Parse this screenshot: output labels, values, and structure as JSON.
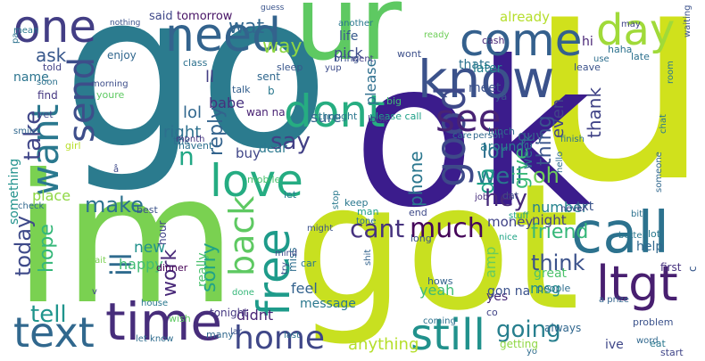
{
  "words": [
    {
      "text": "u",
      "color": "#d0e11c"
    },
    {
      "text": "go",
      "color": "#2b7b8e"
    },
    {
      "text": "ok",
      "color": "#3b1c8c"
    },
    {
      "text": "got",
      "color": "#c8e020"
    },
    {
      "text": "im",
      "color": "#7ad151"
    },
    {
      "text": "ur",
      "color": "#5ec962"
    },
    {
      "text": "call",
      "color": "#2c728e"
    },
    {
      "text": "know",
      "color": "#3b528b"
    },
    {
      "text": "come",
      "color": "#34608d"
    },
    {
      "text": "need",
      "color": "#33638d"
    },
    {
      "text": "one",
      "color": "#433e85"
    },
    {
      "text": "day",
      "color": "#a0da39"
    },
    {
      "text": "time",
      "color": "#472d7b"
    },
    {
      "text": "text",
      "color": "#31688e"
    },
    {
      "text": "ltgt",
      "color": "#481f70"
    },
    {
      "text": "dont",
      "color": "#26ad81"
    },
    {
      "text": "love",
      "color": "#25ac82"
    },
    {
      "text": "free",
      "color": "#1e9b8a"
    },
    {
      "text": "still",
      "color": "#21918c"
    },
    {
      "text": "good",
      "color": "#3e4989"
    },
    {
      "text": "see",
      "color": "#482374"
    },
    {
      "text": "want",
      "color": "#2a788e"
    },
    {
      "text": "send",
      "color": "#3d4e8a"
    },
    {
      "text": "home",
      "color": "#3f4788"
    },
    {
      "text": "back",
      "color": "#5ec962"
    },
    {
      "text": "ill",
      "color": "#2f6b8e"
    },
    {
      "text": "much",
      "color": "#450559"
    },
    {
      "text": "cant",
      "color": "#46327e"
    },
    {
      "text": "going",
      "color": "#277f8e"
    },
    {
      "text": "say",
      "color": "#424086"
    },
    {
      "text": "well",
      "color": "#2a768e"
    },
    {
      "text": "take",
      "color": "#404588"
    },
    {
      "text": "tell",
      "color": "#1f948c"
    },
    {
      "text": "today",
      "color": "#3e4a89"
    },
    {
      "text": "hope",
      "color": "#35b779"
    },
    {
      "text": "make",
      "color": "#2c718e"
    },
    {
      "text": "work",
      "color": "#482878"
    },
    {
      "text": "sorry",
      "color": "#20a386"
    },
    {
      "text": "think",
      "color": "#3b528b"
    },
    {
      "text": "friend",
      "color": "#35b779"
    },
    {
      "text": "reply",
      "color": "#33638d"
    },
    {
      "text": "way",
      "color": "#8fd744"
    },
    {
      "text": "wat",
      "color": "#31678e"
    },
    {
      "text": "ask",
      "color": "#38588c"
    },
    {
      "text": "da",
      "color": "#1fa187"
    },
    {
      "text": "hey",
      "color": "#472a7a"
    },
    {
      "text": "oh",
      "color": "#6ece58"
    },
    {
      "text": "lor",
      "color": "#2e6f8e"
    },
    {
      "text": "give",
      "color": "#3aba76"
    },
    {
      "text": "thing",
      "color": "#3a548c"
    },
    {
      "text": "thank",
      "color": "#404387"
    },
    {
      "text": "phone",
      "color": "#2a778e"
    },
    {
      "text": "lol",
      "color": "#31678e"
    },
    {
      "text": "right",
      "color": "#2d708e"
    },
    {
      "text": "babe",
      "color": "#46307e"
    },
    {
      "text": "ll",
      "color": "#433d84"
    },
    {
      "text": "n",
      "color": "#22a785"
    },
    {
      "text": "pick",
      "color": "#3e4c8a"
    },
    {
      "text": "life",
      "color": "#375a8c"
    },
    {
      "text": "said",
      "color": "#3f4889"
    },
    {
      "text": "tomorrow",
      "color": "#471365"
    },
    {
      "text": "already",
      "color": "#b5de2b"
    },
    {
      "text": "thats",
      "color": "#2c728e"
    },
    {
      "text": "hi",
      "color": "#482576"
    },
    {
      "text": "later",
      "color": "#26828e"
    },
    {
      "text": "meet",
      "color": "#3b528b"
    },
    {
      "text": "please",
      "color": "#2e6f8e"
    },
    {
      "text": "sure",
      "color": "#33638d"
    },
    {
      "text": "buy",
      "color": "#404688"
    },
    {
      "text": "dear",
      "color": "#2a788e"
    },
    {
      "text": "guy",
      "color": "#38598c"
    },
    {
      "text": "even",
      "color": "#414487"
    },
    {
      "text": "night",
      "color": "#414287"
    },
    {
      "text": "number",
      "color": "#25838e"
    },
    {
      "text": "money",
      "color": "#404387"
    },
    {
      "text": "new",
      "color": "#21918c"
    },
    {
      "text": "happy",
      "color": "#3fbc73"
    },
    {
      "text": "feel",
      "color": "#33628d"
    },
    {
      "text": "yeah",
      "color": "#3dbc74"
    },
    {
      "text": "msg",
      "color": "#21908d"
    },
    {
      "text": "yes",
      "color": "#482979"
    },
    {
      "text": "great",
      "color": "#4cc26c"
    },
    {
      "text": "didnt",
      "color": "#482475"
    },
    {
      "text": "message",
      "color": "#2a788e"
    },
    {
      "text": "ive",
      "color": "#3f4788"
    },
    {
      "text": "anything",
      "color": "#b5de2b"
    },
    {
      "text": "week",
      "color": "#2e6e8e"
    },
    {
      "text": "around",
      "color": "#297b8e"
    },
    {
      "text": "amp",
      "color": "#67cc5c"
    },
    {
      "text": "gon na",
      "color": "#3b528b"
    },
    {
      "text": "really",
      "color": "#4ac16d"
    },
    {
      "text": "place",
      "color": "#8fd744"
    },
    {
      "text": "something",
      "color": "#21918c"
    },
    {
      "text": "miss",
      "color": "#2e6e8e"
    },
    {
      "text": "find",
      "color": "#453781"
    },
    {
      "text": "txt",
      "color": "#3a548c"
    },
    {
      "text": "c",
      "color": "#38588c"
    },
    {
      "text": "help",
      "color": "#31688e"
    },
    {
      "text": "lot",
      "color": "#2a788e"
    },
    {
      "text": "first",
      "color": "#46327e"
    },
    {
      "text": "thk",
      "color": "#2f6c8e"
    },
    {
      "text": "talk",
      "color": "#35608d"
    },
    {
      "text": "sent",
      "color": "#31688e"
    },
    {
      "text": "tonight",
      "color": "#453882"
    },
    {
      "text": "wont",
      "color": "#3c4f8a"
    },
    {
      "text": "cash",
      "color": "#482878"
    },
    {
      "text": "leave",
      "color": "#3b528b"
    },
    {
      "text": "late",
      "color": "#2d718e"
    },
    {
      "text": "sleep",
      "color": "#39568c"
    },
    {
      "text": "havent",
      "color": "#2c718e"
    },
    {
      "text": "b",
      "color": "#2a788e"
    },
    {
      "text": "wan na",
      "color": "#482173"
    },
    {
      "text": "stop",
      "color": "#297a8e"
    },
    {
      "text": "long",
      "color": "#3a538b"
    },
    {
      "text": "hows",
      "color": "#33638d"
    },
    {
      "text": "always",
      "color": "#31678e"
    },
    {
      "text": "co",
      "color": "#414487"
    },
    {
      "text": "name",
      "color": "#2b748e"
    },
    {
      "text": "soon",
      "color": "#2c718e"
    },
    {
      "text": "told",
      "color": "#424186"
    },
    {
      "text": "youre",
      "color": "#5ec962"
    },
    {
      "text": "yet",
      "color": "#3e4989"
    },
    {
      "text": "girl",
      "color": "#b8de29"
    },
    {
      "text": "enjoy",
      "color": "#31678e"
    },
    {
      "text": "morning",
      "color": "#3d4d8a"
    },
    {
      "text": "hour",
      "color": "#404688"
    },
    {
      "text": "dinner",
      "color": "#440154"
    },
    {
      "text": "best",
      "color": "#3b528b"
    },
    {
      "text": "month",
      "color": "#46337f"
    },
    {
      "text": "mobile",
      "color": "#4ac16d"
    },
    {
      "text": "check",
      "color": "#31688e"
    },
    {
      "text": "let",
      "color": "#277f8e"
    },
    {
      "text": "keep",
      "color": "#2a778e"
    },
    {
      "text": "man",
      "color": "#1f9e89"
    },
    {
      "text": "tone",
      "color": "#2c728e"
    },
    {
      "text": "might",
      "color": "#3b528b"
    },
    {
      "text": "end",
      "color": "#3e4a89"
    },
    {
      "text": "nice",
      "color": "#20a486"
    },
    {
      "text": "dat",
      "color": "#3e4989"
    },
    {
      "text": "job",
      "color": "#472d7b"
    },
    {
      "text": "person",
      "color": "#31688e"
    },
    {
      "text": "lunch",
      "color": "#2f6b8e"
    },
    {
      "text": "ya",
      "color": "#38588c"
    },
    {
      "text": "care",
      "color": "#2c718e"
    },
    {
      "text": "please call",
      "color": "#1fa088"
    },
    {
      "text": "big",
      "color": "#40bd72"
    },
    {
      "text": "look",
      "color": "#414487"
    },
    {
      "text": "thought",
      "color": "#2a788e"
    },
    {
      "text": "went",
      "color": "#433e85"
    },
    {
      "text": "bring",
      "color": "#3b528b"
    },
    {
      "text": "yup",
      "color": "#3e4c8a"
    },
    {
      "text": "class",
      "color": "#2c718e"
    },
    {
      "text": "another",
      "color": "#2a788e"
    },
    {
      "text": "guess",
      "color": "#3a548c"
    },
    {
      "text": "ready",
      "color": "#6ece58"
    },
    {
      "text": "may",
      "color": "#414487"
    },
    {
      "text": "use",
      "color": "#2e6f8e"
    },
    {
      "text": "haha",
      "color": "#2c728e"
    },
    {
      "text": "waiting",
      "color": "#3b528b"
    },
    {
      "text": "room",
      "color": "#2a788e"
    },
    {
      "text": "finish",
      "color": "#2c728e"
    },
    {
      "text": "never",
      "color": "#3f4788"
    },
    {
      "text": "hello",
      "color": "#2f6c8e"
    },
    {
      "text": "stuff",
      "color": "#1fa188"
    },
    {
      "text": "someone",
      "color": "#31688e"
    },
    {
      "text": "chat",
      "color": "#2a788e"
    },
    {
      "text": "problem",
      "color": "#3b528b"
    },
    {
      "text": "a prize",
      "color": "#33638d"
    },
    {
      "text": "people",
      "color": "#2e6e8e"
    },
    {
      "text": "coming",
      "color": "#2c718e"
    },
    {
      "text": "word",
      "color": "#31688e"
    },
    {
      "text": "eat",
      "color": "#2a788e"
    },
    {
      "text": "start",
      "color": "#404588"
    },
    {
      "text": "yo",
      "color": "#2f6c8e"
    },
    {
      "text": "getting",
      "color": "#8fd744"
    },
    {
      "text": "shit",
      "color": "#33638d"
    },
    {
      "text": "try",
      "color": "#3b528b"
    },
    {
      "text": "car",
      "color": "#2a788e"
    },
    {
      "text": "mind",
      "color": "#3e4989"
    },
    {
      "text": "bit",
      "color": "#2c718e"
    },
    {
      "text": "better",
      "color": "#2a788e"
    },
    {
      "text": "wish",
      "color": "#5ec962"
    },
    {
      "text": "many",
      "color": "#31688e"
    },
    {
      "text": "last",
      "color": "#2c728e"
    },
    {
      "text": "lar",
      "color": "#3b528b"
    },
    {
      "text": "done",
      "color": "#35b779"
    },
    {
      "text": "house",
      "color": "#2a788e"
    },
    {
      "text": "let know",
      "color": "#2f6c8e"
    },
    {
      "text": "v",
      "color": "#3e4989"
    },
    {
      "text": "wait",
      "color": "#7ad151"
    },
    {
      "text": "smile",
      "color": "#31688e"
    },
    {
      "text": "pa",
      "color": "#2c718e"
    },
    {
      "text": "mean",
      "color": "#2a788e"
    },
    {
      "text": "nothing",
      "color": "#3b528b"
    },
    {
      "text": "å",
      "color": "#3e4989"
    }
  ]
}
